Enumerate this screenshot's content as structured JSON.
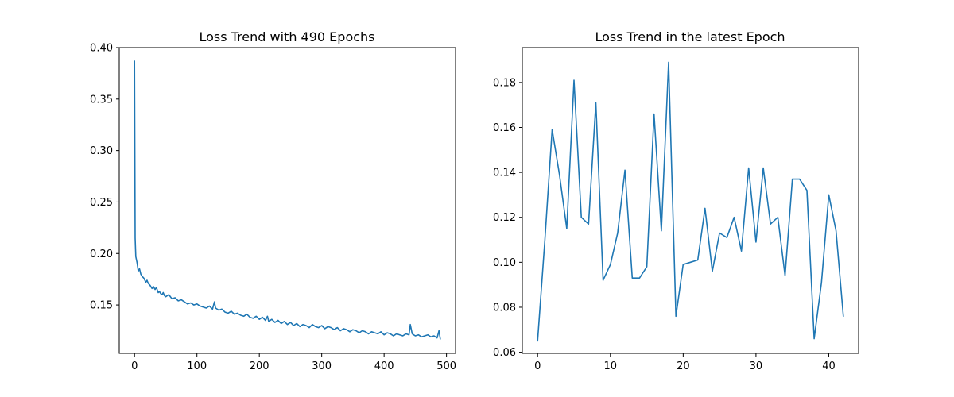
{
  "colors": {
    "series": "#1f77b4",
    "axes": "#000000",
    "background": "#ffffff"
  },
  "chart_data": [
    {
      "type": "line",
      "title": "Loss Trend with 490 Epochs",
      "xlabel": "",
      "ylabel": "",
      "xlim": [
        -24.5,
        514.5
      ],
      "ylim": [
        0.103,
        0.4
      ],
      "xticks": [
        0,
        100,
        200,
        300,
        400,
        500
      ],
      "yticks": [
        0.15,
        0.2,
        0.25,
        0.3,
        0.35,
        0.4
      ],
      "grid": false,
      "series": [
        {
          "x": [
            0,
            1,
            2,
            4,
            6,
            8,
            10,
            12,
            15,
            18,
            20,
            22,
            25,
            28,
            30,
            33,
            35,
            38,
            40,
            42,
            44,
            46,
            48,
            50,
            55,
            60,
            65,
            70,
            75,
            80,
            85,
            90,
            95,
            100,
            105,
            110,
            115,
            120,
            125,
            128,
            130,
            135,
            140,
            145,
            150,
            155,
            160,
            165,
            170,
            175,
            180,
            185,
            190,
            195,
            200,
            205,
            210,
            213,
            215,
            220,
            225,
            230,
            235,
            240,
            245,
            250,
            255,
            260,
            265,
            270,
            275,
            280,
            285,
            290,
            295,
            300,
            305,
            310,
            315,
            320,
            325,
            330,
            335,
            340,
            345,
            350,
            355,
            360,
            365,
            370,
            375,
            380,
            385,
            390,
            395,
            400,
            405,
            410,
            415,
            420,
            425,
            430,
            435,
            440,
            442,
            445,
            450,
            455,
            460,
            465,
            470,
            475,
            480,
            485,
            488,
            490
          ],
          "y": [
            0.387,
            0.215,
            0.197,
            0.191,
            0.183,
            0.185,
            0.18,
            0.178,
            0.176,
            0.172,
            0.174,
            0.171,
            0.169,
            0.166,
            0.168,
            0.165,
            0.167,
            0.162,
            0.163,
            0.161,
            0.16,
            0.162,
            0.159,
            0.158,
            0.16,
            0.156,
            0.157,
            0.154,
            0.155,
            0.153,
            0.151,
            0.152,
            0.15,
            0.151,
            0.149,
            0.148,
            0.147,
            0.149,
            0.146,
            0.153,
            0.147,
            0.145,
            0.146,
            0.143,
            0.142,
            0.144,
            0.141,
            0.142,
            0.14,
            0.139,
            0.141,
            0.138,
            0.137,
            0.139,
            0.136,
            0.138,
            0.135,
            0.139,
            0.134,
            0.136,
            0.133,
            0.135,
            0.132,
            0.134,
            0.131,
            0.133,
            0.13,
            0.132,
            0.129,
            0.131,
            0.13,
            0.128,
            0.131,
            0.129,
            0.128,
            0.13,
            0.127,
            0.129,
            0.128,
            0.126,
            0.128,
            0.125,
            0.127,
            0.126,
            0.124,
            0.126,
            0.125,
            0.123,
            0.125,
            0.124,
            0.122,
            0.124,
            0.123,
            0.122,
            0.124,
            0.121,
            0.123,
            0.122,
            0.12,
            0.122,
            0.121,
            0.12,
            0.122,
            0.121,
            0.131,
            0.122,
            0.12,
            0.121,
            0.119,
            0.12,
            0.121,
            0.119,
            0.12,
            0.118,
            0.125,
            0.117
          ]
        }
      ]
    },
    {
      "type": "line",
      "title": "Loss Trend in the latest Epoch",
      "xlabel": "",
      "ylabel": "",
      "xlim": [
        -2.1,
        44.1
      ],
      "ylim": [
        0.0595,
        0.1955
      ],
      "xticks": [
        0,
        10,
        20,
        30,
        40
      ],
      "yticks": [
        0.06,
        0.08,
        0.1,
        0.12,
        0.14,
        0.16,
        0.18
      ],
      "grid": false,
      "series": [
        {
          "x": [
            0,
            1,
            2,
            3,
            4,
            5,
            6,
            7,
            8,
            9,
            10,
            11,
            12,
            13,
            14,
            15,
            16,
            17,
            18,
            19,
            20,
            21,
            22,
            23,
            24,
            25,
            26,
            27,
            28,
            29,
            30,
            31,
            32,
            33,
            34,
            35,
            36,
            37,
            38,
            39,
            40,
            41,
            42
          ],
          "y": [
            0.065,
            0.11,
            0.159,
            0.139,
            0.115,
            0.181,
            0.12,
            0.117,
            0.171,
            0.092,
            0.099,
            0.113,
            0.141,
            0.093,
            0.093,
            0.098,
            0.166,
            0.114,
            0.189,
            0.076,
            0.099,
            0.1,
            0.101,
            0.124,
            0.096,
            0.113,
            0.111,
            0.12,
            0.105,
            0.142,
            0.109,
            0.142,
            0.117,
            0.12,
            0.094,
            0.137,
            0.137,
            0.132,
            0.066,
            0.091,
            0.13,
            0.114,
            0.076
          ]
        }
      ]
    }
  ]
}
